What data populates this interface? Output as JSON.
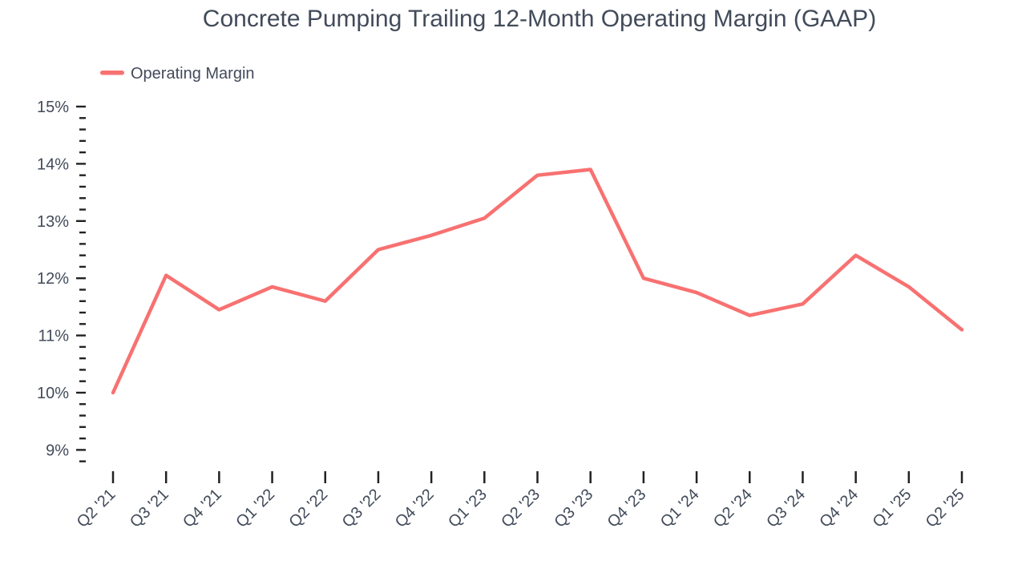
{
  "title": "Concrete Pumping Trailing 12-Month Operating Margin (GAAP)",
  "legend": {
    "label": "Operating Margin"
  },
  "colors": {
    "line": "#f87171",
    "axis_text": "#424b5a",
    "tick": "#222222",
    "background": "#ffffff"
  },
  "chart_data": {
    "type": "line",
    "title": "Concrete Pumping Trailing 12-Month Operating Margin (GAAP)",
    "categories": [
      "Q2 '21",
      "Q3 '21",
      "Q4 '21",
      "Q1 '22",
      "Q2 '22",
      "Q3 '22",
      "Q4 '22",
      "Q1 '23",
      "Q2 '23",
      "Q3 '23",
      "Q4 '23",
      "Q1 '24",
      "Q2 '24",
      "Q3 '24",
      "Q4 '24",
      "Q1 '25",
      "Q2 '25"
    ],
    "series": [
      {
        "name": "Operating Margin",
        "values": [
          10.0,
          12.05,
          11.45,
          11.85,
          11.6,
          12.5,
          12.75,
          13.05,
          13.8,
          13.9,
          12.0,
          11.75,
          11.35,
          11.55,
          12.4,
          11.85,
          11.1
        ]
      }
    ],
    "unit": "%",
    "xlabel": "",
    "ylabel": "",
    "ylim": [
      8.8,
      15
    ],
    "y_major_ticks": [
      15,
      14,
      13,
      12,
      11,
      10,
      9
    ],
    "y_tick_labels": [
      "15%",
      "14%",
      "13%",
      "12%",
      "11%",
      "10%",
      "9%"
    ],
    "y_minor_step": 0.2,
    "grid": false,
    "legend_position": "top-left",
    "x_tick_rotation": -45
  }
}
